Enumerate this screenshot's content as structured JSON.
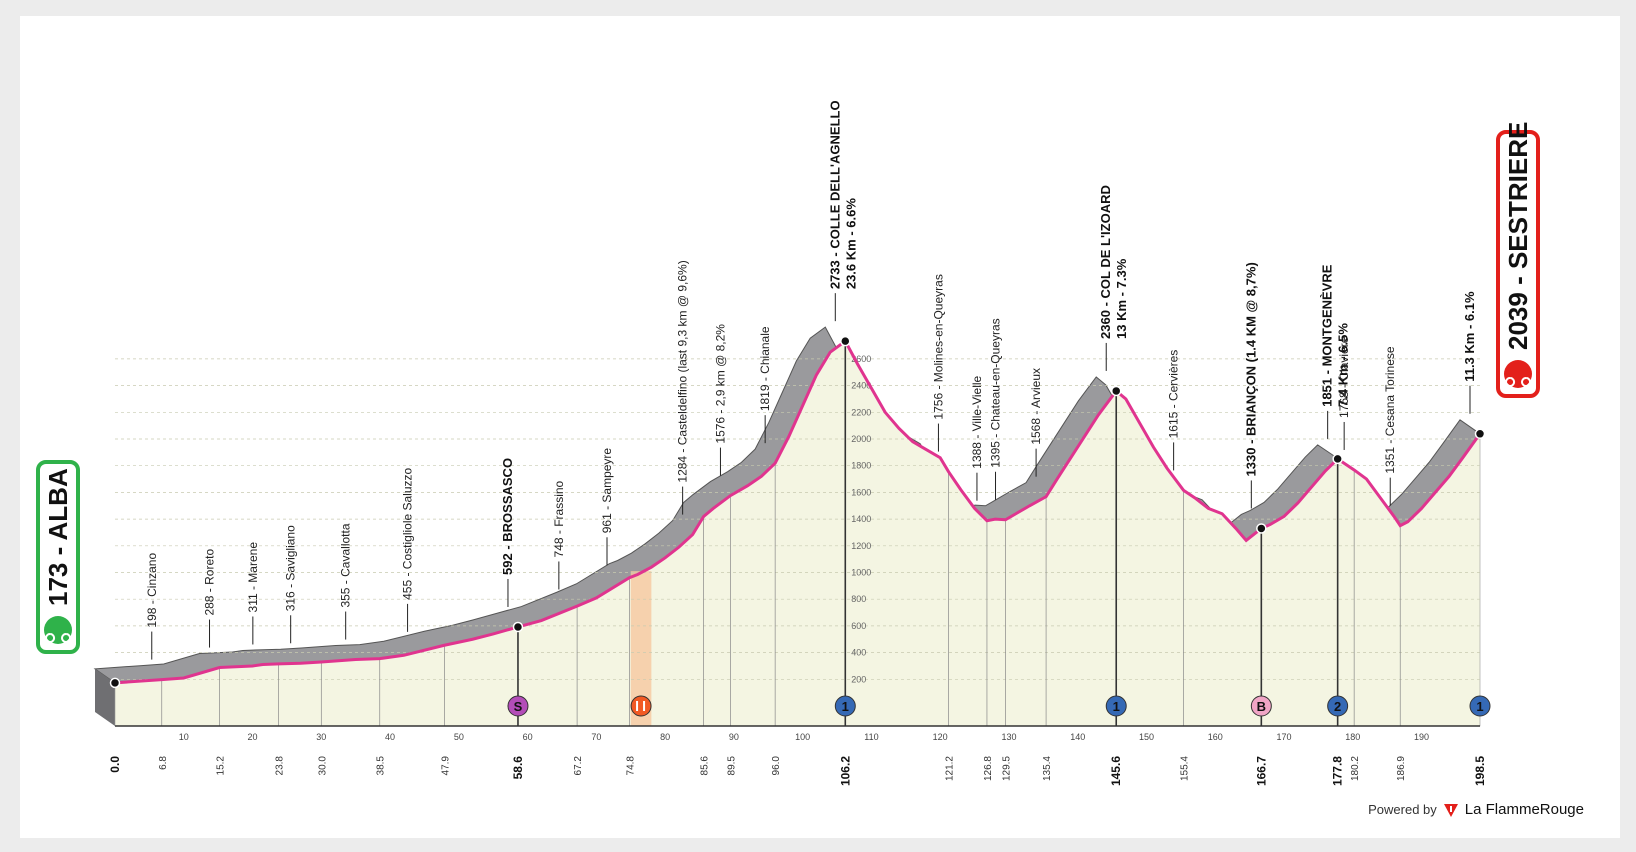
{
  "stage": {
    "start": {
      "label": "173 - ALBA",
      "color": "#2fb24a"
    },
    "finish": {
      "label": "2039 - SESTRIERE",
      "color": "#e3201b"
    }
  },
  "footer": {
    "powered": "Powered by",
    "brand": "La FlammeRouge"
  },
  "colors": {
    "profile_line": "#e0348f",
    "profile_fill": "#f4f5e2",
    "side": "#9a9a9d",
    "feed_zone": "#f6c8a0"
  },
  "chart_data": {
    "type": "area",
    "x_unit": "km",
    "y_unit": "m",
    "xlim": [
      0,
      198.5
    ],
    "ylim": [
      0,
      2800
    ],
    "grid": true,
    "ticks_x": [
      10,
      20,
      30,
      40,
      50,
      60,
      70,
      80,
      90,
      100,
      110,
      120,
      130,
      140,
      150,
      160,
      170,
      180,
      190
    ],
    "ticks_y": [
      200,
      400,
      600,
      800,
      1000,
      1200,
      1400,
      1600,
      1800,
      2000,
      2200,
      2400,
      2600
    ],
    "profile": [
      [
        0,
        173
      ],
      [
        6.8,
        198
      ],
      [
        10,
        210
      ],
      [
        15.2,
        288
      ],
      [
        20,
        300
      ],
      [
        21.5,
        311
      ],
      [
        23.8,
        316
      ],
      [
        27,
        320
      ],
      [
        30,
        330
      ],
      [
        35,
        348
      ],
      [
        38.5,
        355
      ],
      [
        42,
        380
      ],
      [
        47.9,
        455
      ],
      [
        52,
        500
      ],
      [
        55,
        540
      ],
      [
        58.6,
        592
      ],
      [
        62,
        640
      ],
      [
        67.2,
        748
      ],
      [
        70,
        810
      ],
      [
        74.8,
        961
      ],
      [
        76,
        985
      ],
      [
        78,
        1040
      ],
      [
        80,
        1110
      ],
      [
        82,
        1190
      ],
      [
        84,
        1284
      ],
      [
        85.6,
        1420
      ],
      [
        87,
        1480
      ],
      [
        89.5,
        1576
      ],
      [
        92,
        1650
      ],
      [
        94,
        1720
      ],
      [
        96,
        1819
      ],
      [
        98,
        2020
      ],
      [
        100,
        2250
      ],
      [
        102,
        2480
      ],
      [
        104,
        2650
      ],
      [
        106.2,
        2733
      ],
      [
        108,
        2560
      ],
      [
        110,
        2380
      ],
      [
        112,
        2200
      ],
      [
        114,
        2080
      ],
      [
        116,
        1980
      ],
      [
        118,
        1920
      ],
      [
        120,
        1860
      ],
      [
        121.2,
        1756
      ],
      [
        123,
        1620
      ],
      [
        125,
        1480
      ],
      [
        126.8,
        1388
      ],
      [
        128,
        1400
      ],
      [
        129.5,
        1395
      ],
      [
        131,
        1440
      ],
      [
        133,
        1500
      ],
      [
        135.4,
        1568
      ],
      [
        137,
        1700
      ],
      [
        139,
        1860
      ],
      [
        141,
        2020
      ],
      [
        143,
        2180
      ],
      [
        145.6,
        2360
      ],
      [
        147,
        2300
      ],
      [
        149,
        2120
      ],
      [
        151,
        1940
      ],
      [
        153,
        1780
      ],
      [
        155.4,
        1615
      ],
      [
        157,
        1560
      ],
      [
        159,
        1480
      ],
      [
        161,
        1440
      ],
      [
        163,
        1330
      ],
      [
        164.5,
        1240
      ],
      [
        166.7,
        1330
      ],
      [
        168,
        1360
      ],
      [
        170,
        1420
      ],
      [
        172,
        1520
      ],
      [
        174,
        1640
      ],
      [
        176,
        1760
      ],
      [
        177.8,
        1851
      ],
      [
        180.2,
        1768
      ],
      [
        182,
        1700
      ],
      [
        184,
        1560
      ],
      [
        186,
        1420
      ],
      [
        186.9,
        1351
      ],
      [
        188,
        1380
      ],
      [
        190,
        1480
      ],
      [
        192,
        1600
      ],
      [
        194,
        1720
      ],
      [
        196,
        1860
      ],
      [
        198.5,
        2039
      ]
    ],
    "annotations": [
      {
        "km": 6.8,
        "label": "198 - Cinzano"
      },
      {
        "km": 15.2,
        "label": "288 - Roreto"
      },
      {
        "km": 21.5,
        "label": "311 - Marene"
      },
      {
        "km": 27,
        "label": "316 - Savigliano"
      },
      {
        "km": 35,
        "label": "355 - Cavallotta"
      },
      {
        "km": 44,
        "label": "455 - Costigliole Saluzzo"
      },
      {
        "km": 58.6,
        "label": "592 - BROSSASCO",
        "major": true
      },
      {
        "km": 66,
        "label": "748 - Frassino"
      },
      {
        "km": 73,
        "label": "961 - Sampeyre"
      },
      {
        "km": 84,
        "label": "1284 - Casteldelfino (last 9,3 km @ 9,6%)"
      },
      {
        "km": 89.5,
        "label": "1576 - 2,9 km @ 8,2%"
      },
      {
        "km": 96,
        "label": "1819 - Chianale"
      },
      {
        "km": 106.2,
        "label": "2733 - COLLE DELL'AGNELLO",
        "sub": "23.6 Km - 6.6%",
        "major": true
      },
      {
        "km": 121.2,
        "label": "1756 - Molines-en-Queyras"
      },
      {
        "km": 126.8,
        "label": "1388 - Ville-Vielle"
      },
      {
        "km": 129.5,
        "label": "1395 - Chateau-en-Queyras"
      },
      {
        "km": 135.4,
        "label": "1568 - Arvieux"
      },
      {
        "km": 145.6,
        "label": "2360 - COL DE L'IZOARD",
        "sub": "13 Km - 7.3%",
        "major": true
      },
      {
        "km": 155.4,
        "label": "1615 - Cervières"
      },
      {
        "km": 166.7,
        "label": "1330 - BRIANÇON (1.4 KM @ 8,7%)",
        "major": true
      },
      {
        "km": 177.8,
        "label": "1851 - MONTGENÈVRE",
        "sub": "7.4 Km - 6.5%",
        "major": true
      },
      {
        "km": 180.2,
        "label": "1768 - Claviere"
      },
      {
        "km": 186.9,
        "label": "1351 - Cesana Torinese"
      },
      {
        "km": 198.5,
        "label": "11.3 Km - 6.1%",
        "major": true
      }
    ],
    "km_labels": [
      {
        "km": 0.0,
        "label": "0.0",
        "major": true
      },
      {
        "km": 6.8,
        "label": "6.8"
      },
      {
        "km": 15.2,
        "label": "15.2"
      },
      {
        "km": 23.8,
        "label": "23.8"
      },
      {
        "km": 30.0,
        "label": "30.0"
      },
      {
        "km": 38.5,
        "label": "38.5"
      },
      {
        "km": 47.9,
        "label": "47.9"
      },
      {
        "km": 58.6,
        "label": "58.6",
        "major": true
      },
      {
        "km": 67.2,
        "label": "67.2"
      },
      {
        "km": 74.8,
        "label": "74.8"
      },
      {
        "km": 85.6,
        "label": "85.6"
      },
      {
        "km": 89.5,
        "label": "89.5"
      },
      {
        "km": 96.0,
        "label": "96.0"
      },
      {
        "km": 106.2,
        "label": "106.2",
        "major": true
      },
      {
        "km": 121.2,
        "label": "121.2"
      },
      {
        "km": 126.8,
        "label": "126.8"
      },
      {
        "km": 129.5,
        "label": "129.5"
      },
      {
        "km": 135.4,
        "label": "135.4"
      },
      {
        "km": 145.6,
        "label": "145.6",
        "major": true
      },
      {
        "km": 155.4,
        "label": "155.4"
      },
      {
        "km": 166.7,
        "label": "166.7",
        "major": true
      },
      {
        "km": 177.8,
        "label": "177.8",
        "major": true
      },
      {
        "km": 180.2,
        "label": "180.2"
      },
      {
        "km": 186.9,
        "label": "186.9"
      },
      {
        "km": 198.5,
        "label": "198.5",
        "major": true
      }
    ],
    "markers": [
      {
        "km": 58.6,
        "symbol": "S",
        "type": "sprint",
        "color": "#b34db8"
      },
      {
        "km": 106.2,
        "symbol": "1",
        "type": "climb-cat-1",
        "color": "#3569b5"
      },
      {
        "km": 145.6,
        "symbol": "1",
        "type": "climb-cat-1",
        "color": "#3569b5"
      },
      {
        "km": 166.7,
        "symbol": "B",
        "type": "bonus",
        "color": "#f1a5c6"
      },
      {
        "km": 177.8,
        "symbol": "2",
        "type": "climb-cat-2",
        "color": "#3569b5"
      },
      {
        "km": 198.5,
        "symbol": "1",
        "type": "climb-cat-1",
        "color": "#3569b5"
      }
    ],
    "feed_zone": {
      "from": 75,
      "to": 78,
      "symbol": "feed-icon",
      "color": "#f15a24"
    }
  }
}
